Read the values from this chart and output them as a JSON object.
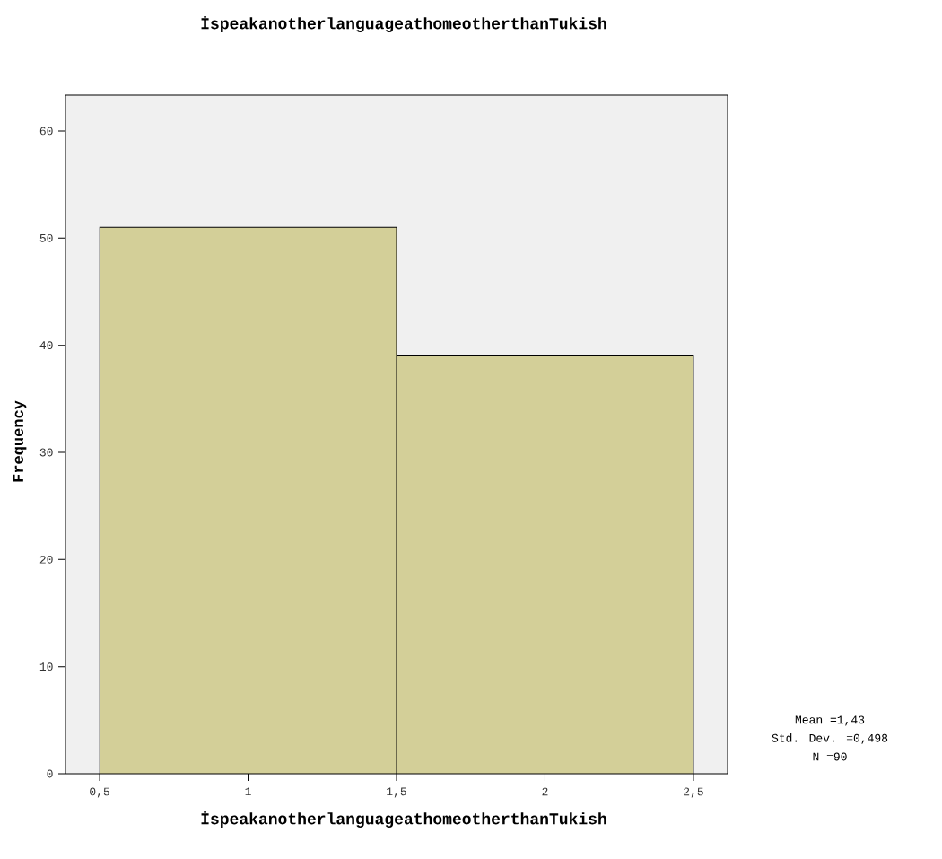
{
  "chart_data": {
    "type": "histogram",
    "title": "İspeakanotherlanguageathomeotherthanTukish",
    "xlabel": "İspeakanotherlanguageathomeotherthanTukish",
    "ylabel": "Frequency",
    "bins": [
      0.5,
      1.5,
      2.5
    ],
    "values": [
      51,
      39
    ],
    "color": "#d3cf98",
    "xlim": [
      0.385,
      2.615
    ],
    "ylim": [
      0,
      63.35
    ],
    "xticks": [
      {
        "value": 0.5,
        "label": "0,5"
      },
      1,
      {
        "value": 1.5,
        "label": "1,5"
      },
      2,
      {
        "value": 2.5,
        "label": "2,5"
      }
    ],
    "yticks": [
      0,
      10,
      20,
      30,
      40,
      50,
      60
    ],
    "annotations": [
      "Mean =1,43",
      "Std. Dev. =0,498",
      "N =90"
    ]
  }
}
